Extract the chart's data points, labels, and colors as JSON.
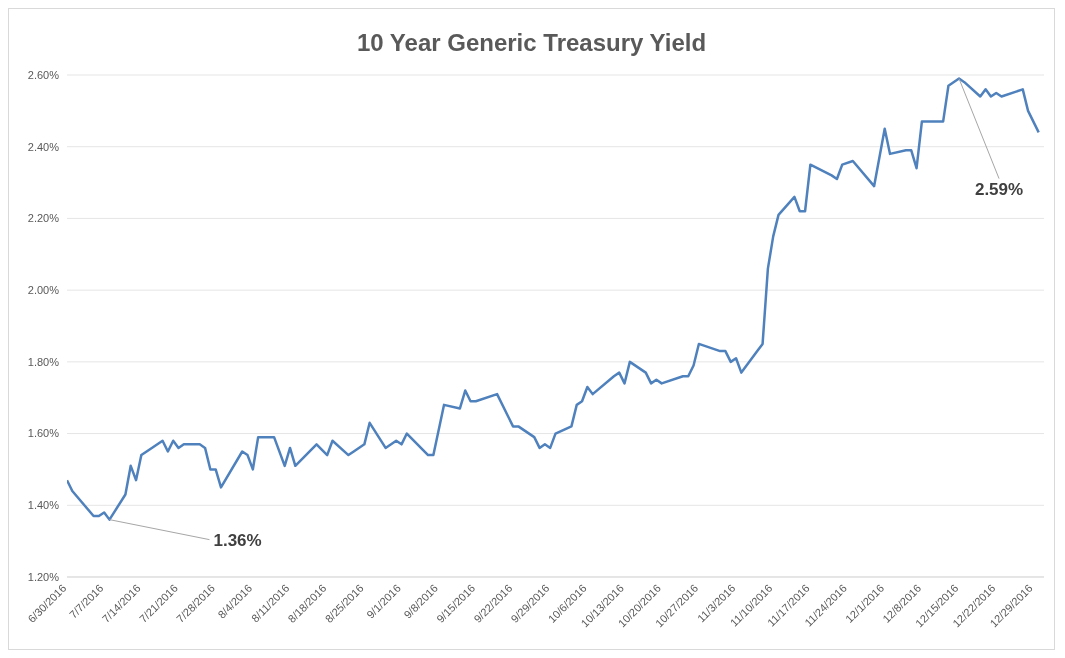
{
  "chart_data": {
    "type": "line",
    "title": "10 Year Generic Treasury Yield",
    "x": [
      "2016-06-30",
      "2016-07-01",
      "2016-07-05",
      "2016-07-06",
      "2016-07-07",
      "2016-07-08",
      "2016-07-11",
      "2016-07-12",
      "2016-07-13",
      "2016-07-14",
      "2016-07-15",
      "2016-07-18",
      "2016-07-19",
      "2016-07-20",
      "2016-07-21",
      "2016-07-22",
      "2016-07-25",
      "2016-07-26",
      "2016-07-27",
      "2016-07-28",
      "2016-07-29",
      "2016-08-02",
      "2016-08-03",
      "2016-08-04",
      "2016-08-05",
      "2016-08-08",
      "2016-08-10",
      "2016-08-11",
      "2016-08-12",
      "2016-08-16",
      "2016-08-18",
      "2016-08-19",
      "2016-08-22",
      "2016-08-23",
      "2016-08-25",
      "2016-08-26",
      "2016-08-29",
      "2016-08-31",
      "2016-09-01",
      "2016-09-02",
      "2016-09-06",
      "2016-09-07",
      "2016-09-09",
      "2016-09-12",
      "2016-09-13",
      "2016-09-14",
      "2016-09-15",
      "2016-09-19",
      "2016-09-22",
      "2016-09-23",
      "2016-09-26",
      "2016-09-27",
      "2016-09-28",
      "2016-09-29",
      "2016-09-30",
      "2016-10-03",
      "2016-10-04",
      "2016-10-05",
      "2016-10-06",
      "2016-10-07",
      "2016-10-11",
      "2016-10-12",
      "2016-10-13",
      "2016-10-14",
      "2016-10-17",
      "2016-10-18",
      "2016-10-19",
      "2016-10-20",
      "2016-10-24",
      "2016-10-25",
      "2016-10-26",
      "2016-10-27",
      "2016-10-31",
      "2016-11-01",
      "2016-11-02",
      "2016-11-03",
      "2016-11-04",
      "2016-11-07",
      "2016-11-08",
      "2016-11-09",
      "2016-11-10",
      "2016-11-11",
      "2016-11-14",
      "2016-11-15",
      "2016-11-16",
      "2016-11-17",
      "2016-11-21",
      "2016-11-22",
      "2016-11-23",
      "2016-11-25",
      "2016-11-29",
      "2016-12-01",
      "2016-12-02",
      "2016-12-05",
      "2016-12-06",
      "2016-12-07",
      "2016-12-08",
      "2016-12-12",
      "2016-12-13",
      "2016-12-15",
      "2016-12-16",
      "2016-12-19",
      "2016-12-20",
      "2016-12-21",
      "2016-12-22",
      "2016-12-23",
      "2016-12-27",
      "2016-12-28",
      "2016-12-30"
    ],
    "series": [
      {
        "color": "#4f81bd",
        "values": [
          1.47,
          1.44,
          1.37,
          1.37,
          1.38,
          1.36,
          1.43,
          1.51,
          1.47,
          1.54,
          1.55,
          1.58,
          1.55,
          1.58,
          1.56,
          1.57,
          1.57,
          1.56,
          1.5,
          1.5,
          1.45,
          1.55,
          1.54,
          1.5,
          1.59,
          1.59,
          1.51,
          1.56,
          1.51,
          1.57,
          1.54,
          1.58,
          1.54,
          1.55,
          1.57,
          1.63,
          1.56,
          1.58,
          1.57,
          1.6,
          1.54,
          1.54,
          1.68,
          1.67,
          1.72,
          1.69,
          1.69,
          1.71,
          1.62,
          1.62,
          1.59,
          1.56,
          1.57,
          1.56,
          1.6,
          1.62,
          1.68,
          1.69,
          1.73,
          1.71,
          1.76,
          1.77,
          1.74,
          1.8,
          1.77,
          1.74,
          1.75,
          1.74,
          1.76,
          1.76,
          1.79,
          1.85,
          1.83,
          1.83,
          1.8,
          1.81,
          1.77,
          1.83,
          1.85,
          2.06,
          2.15,
          2.21,
          2.26,
          2.22,
          2.22,
          2.35,
          2.32,
          2.31,
          2.35,
          2.36,
          2.29,
          2.45,
          2.38,
          2.39,
          2.39,
          2.34,
          2.47,
          2.47,
          2.57,
          2.59,
          2.58,
          2.54,
          2.56,
          2.54,
          2.55,
          2.54,
          2.56,
          2.5,
          2.44
        ]
      }
    ],
    "xlim": [
      "2016-06-30",
      "2016-12-31"
    ],
    "xticks": [
      {
        "value": "2016-06-30",
        "label": "6/30/2016"
      },
      {
        "value": "2016-07-07",
        "label": "7/7/2016"
      },
      {
        "value": "2016-07-14",
        "label": "7/14/2016"
      },
      {
        "value": "2016-07-21",
        "label": "7/21/2016"
      },
      {
        "value": "2016-07-28",
        "label": "7/28/2016"
      },
      {
        "value": "2016-08-04",
        "label": "8/4/2016"
      },
      {
        "value": "2016-08-11",
        "label": "8/11/2016"
      },
      {
        "value": "2016-08-18",
        "label": "8/18/2016"
      },
      {
        "value": "2016-08-25",
        "label": "8/25/2016"
      },
      {
        "value": "2016-09-01",
        "label": "9/1/2016"
      },
      {
        "value": "2016-09-08",
        "label": "9/8/2016"
      },
      {
        "value": "2016-09-15",
        "label": "9/15/2016"
      },
      {
        "value": "2016-09-22",
        "label": "9/22/2016"
      },
      {
        "value": "2016-09-29",
        "label": "9/29/2016"
      },
      {
        "value": "2016-10-06",
        "label": "10/6/2016"
      },
      {
        "value": "2016-10-13",
        "label": "10/13/2016"
      },
      {
        "value": "2016-10-20",
        "label": "10/20/2016"
      },
      {
        "value": "2016-10-27",
        "label": "10/27/2016"
      },
      {
        "value": "2016-11-03",
        "label": "11/3/2016"
      },
      {
        "value": "2016-11-10",
        "label": "11/10/2016"
      },
      {
        "value": "2016-11-17",
        "label": "11/17/2016"
      },
      {
        "value": "2016-11-24",
        "label": "11/24/2016"
      },
      {
        "value": "2016-12-01",
        "label": "12/1/2016"
      },
      {
        "value": "2016-12-08",
        "label": "12/8/2016"
      },
      {
        "value": "2016-12-15",
        "label": "12/15/2016"
      },
      {
        "value": "2016-12-22",
        "label": "12/22/2016"
      },
      {
        "value": "2016-12-29",
        "label": "12/29/2016"
      }
    ],
    "ylim": [
      1.2,
      2.6
    ],
    "yticks": [
      {
        "value": 1.2,
        "label": "1.20%"
      },
      {
        "value": 1.4,
        "label": "1.40%"
      },
      {
        "value": 1.6,
        "label": "1.60%"
      },
      {
        "value": 1.8,
        "label": "1.80%"
      },
      {
        "value": 2.0,
        "label": "2.00%"
      },
      {
        "value": 2.2,
        "label": "2.20%"
      },
      {
        "value": 2.4,
        "label": "2.40%"
      },
      {
        "value": 2.6,
        "label": "2.60%"
      }
    ],
    "grid": "y",
    "marker": "none",
    "line_style": "solid",
    "annotations": [
      {
        "text": "1.36%",
        "x": "2016-07-08",
        "y": 1.36
      },
      {
        "text": "2.59%",
        "x": "2016-12-15",
        "y": 2.59
      }
    ]
  }
}
